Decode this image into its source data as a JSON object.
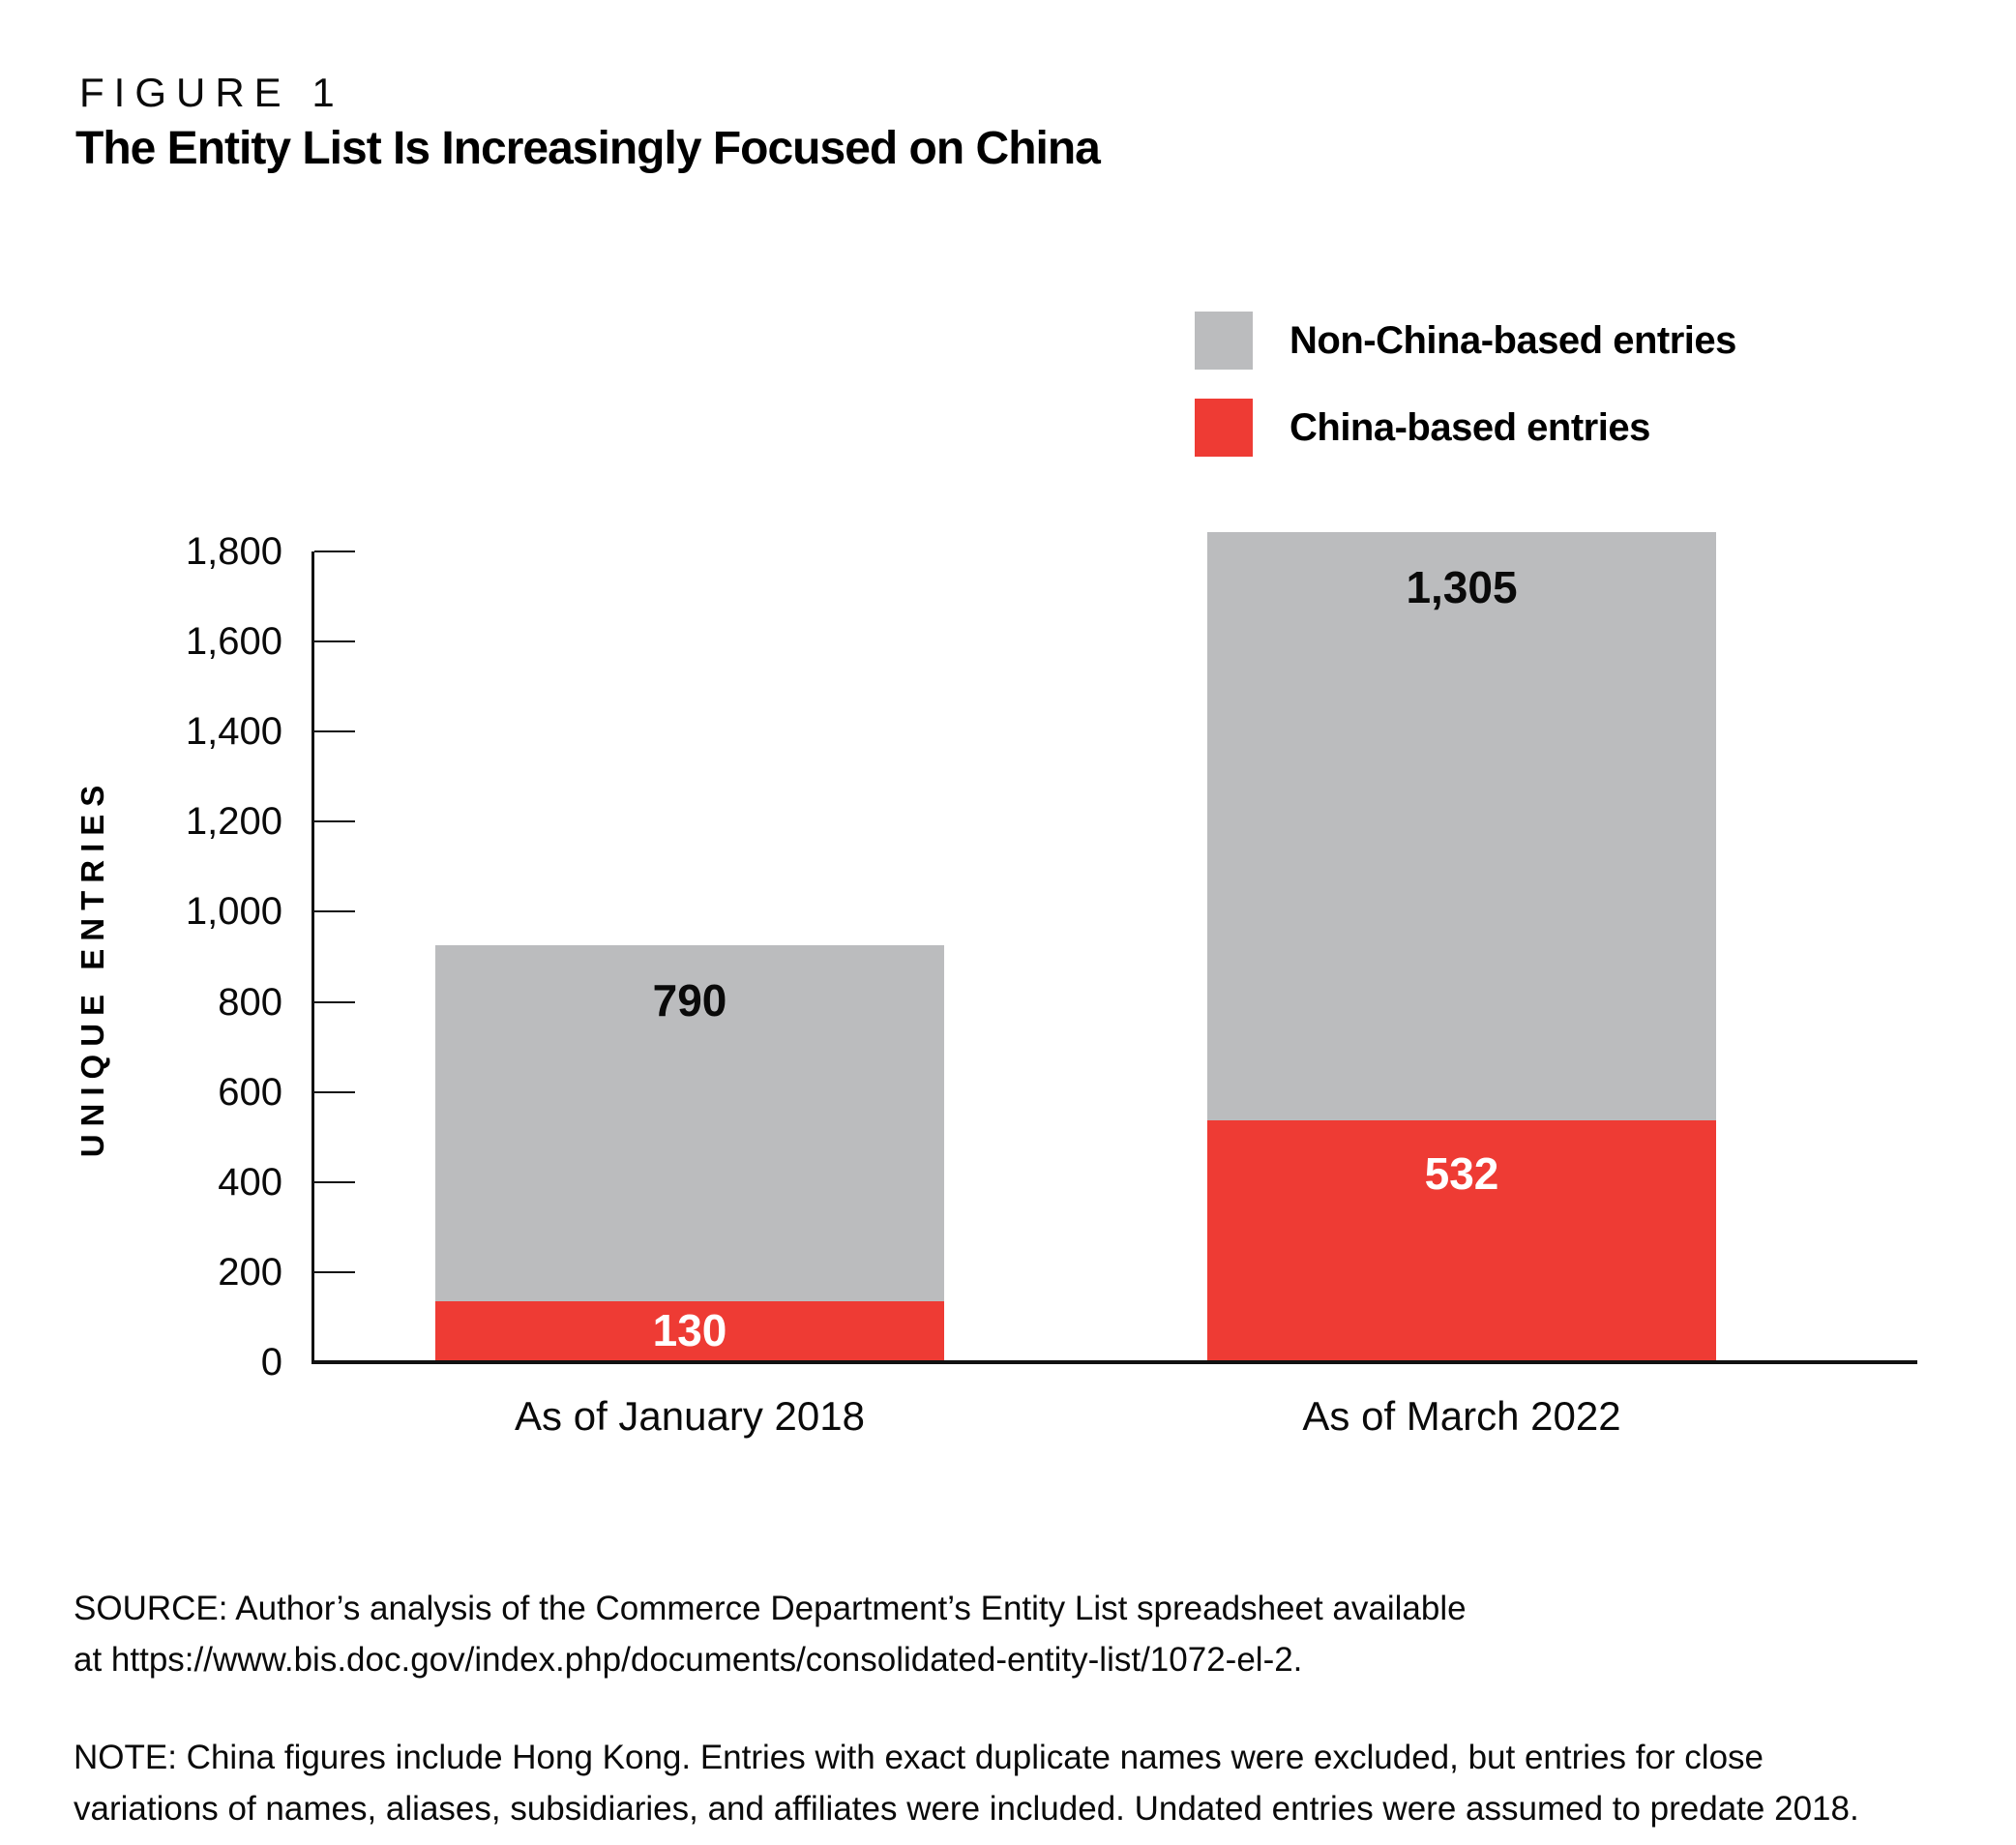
{
  "figure": {
    "label": "FIGURE 1",
    "title": "The Entity List Is Increasingly Focused on China"
  },
  "legend": [
    {
      "label": "Non-China-based entries",
      "color": "#bbbcbe"
    },
    {
      "label": "China-based entries",
      "color": "#ee3b34"
    }
  ],
  "chart_data": {
    "type": "bar",
    "stacked": true,
    "title": "The Entity List Is Increasingly Focused on China",
    "categories": [
      "As of January 2018",
      "As of March 2022"
    ],
    "series": [
      {
        "name": "China-based entries",
        "color": "#ee3b34",
        "label_color": "#ffffff",
        "values": [
          130,
          532
        ]
      },
      {
        "name": "Non-China-based entries",
        "color": "#bbbcbe",
        "label_color": "#0a0a0a",
        "values": [
          790,
          1305
        ]
      }
    ],
    "value_labels": [
      [
        "130",
        "532"
      ],
      [
        "790",
        "1,305"
      ]
    ],
    "totals": [
      920,
      1837
    ],
    "xlabel": "",
    "ylabel": "UNIQUE ENTRIES",
    "ylim": [
      0,
      1800
    ],
    "yticks": [
      0,
      200,
      400,
      600,
      800,
      1000,
      1200,
      1400,
      1600,
      1800
    ],
    "ytick_labels": [
      "0",
      "200",
      "400",
      "600",
      "800",
      "1,000",
      "1,200",
      "1,400",
      "1,600",
      "1,800"
    ],
    "grid": false,
    "legend_position": "top-right"
  },
  "source": "SOURCE: Author’s analysis of the Commerce Department’s Entity List spreadsheet available at https://www.bis.doc.gov/index.php/documents/consolidated-entity-list/1072-el-2.",
  "note": "NOTE: China figures include Hong Kong. Entries with exact duplicate names were excluded, but entries for close variations of names, aliases, subsidiaries, and affiliates were included. Undated entries were assumed to predate 2018."
}
